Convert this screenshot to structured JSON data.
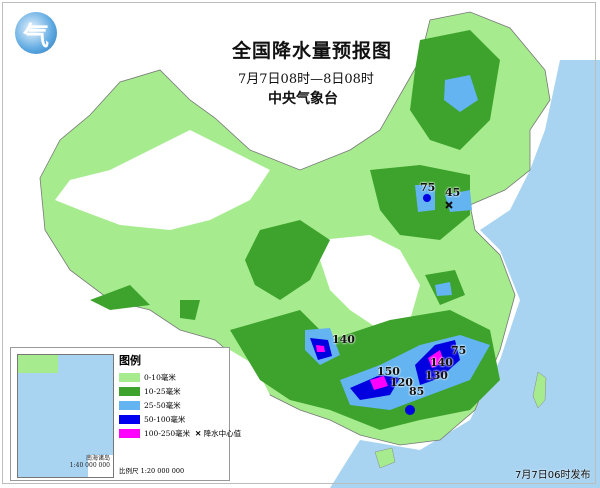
{
  "header": {
    "title": "全国降水量预报图",
    "time_range": "7月7日08时—8日08时",
    "agency": "中央气象台"
  },
  "legend": {
    "title": "图例",
    "items": [
      {
        "label": "0-10毫米",
        "color": "#a6ec8e"
      },
      {
        "label": "10-25毫米",
        "color": "#3da32c"
      },
      {
        "label": "25-50毫米",
        "color": "#63b4f0"
      },
      {
        "label": "50-100毫米",
        "color": "#0000f0"
      },
      {
        "label": "100-250毫米",
        "color": "#ff00ff"
      }
    ],
    "center_marker": "降水中心值",
    "center_icon": "x-mark-icon",
    "scale": "比例尺  1:20 000 000"
  },
  "inset": {
    "label": "南海诸岛",
    "scale": "1:40 000 000"
  },
  "rain_centers": [
    "75",
    "45",
    "140",
    "150",
    "120",
    "140",
    "130",
    "85",
    "75"
  ],
  "footer": {
    "published": "7月7日06时发布"
  },
  "colors": {
    "sea": "#a8d4f2",
    "land": "#ffffff"
  }
}
